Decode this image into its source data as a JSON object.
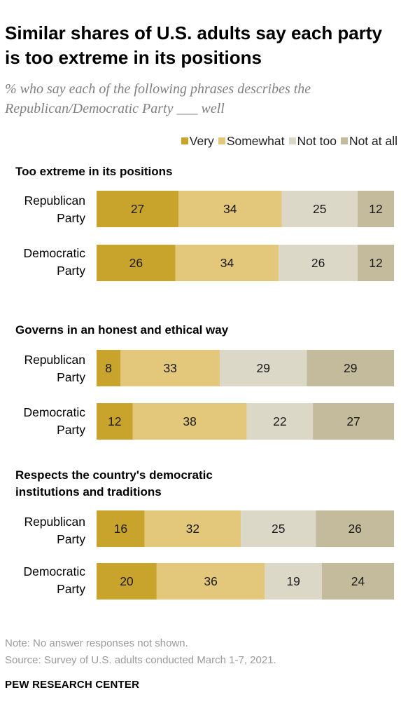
{
  "title": "Similar shares of U.S. adults say each party is too extreme in its positions",
  "subtitle": "% who say each of the following phrases describes the Republican/Democratic Party ___ well",
  "legend": [
    {
      "label": "Very",
      "color": "#c9a42c"
    },
    {
      "label": "Somewhat",
      "color": "#e3c77b"
    },
    {
      "label": "Not too",
      "color": "#dcd8c8"
    },
    {
      "label": "Not at all",
      "color": "#c4bb9d"
    }
  ],
  "chart_data": {
    "type": "bar",
    "orientation": "horizontal",
    "stacked": true,
    "categories": [
      "Very",
      "Somewhat",
      "Not too",
      "Not at all"
    ],
    "groups": [
      {
        "title": "Too extreme in its positions",
        "rows": [
          {
            "label_line1": "Republican",
            "label_line2": "Party",
            "values": [
              27,
              34,
              25,
              12
            ]
          },
          {
            "label_line1": "Democratic",
            "label_line2": "Party",
            "values": [
              26,
              34,
              26,
              12
            ]
          }
        ]
      },
      {
        "title": "Governs in an honest and ethical way",
        "rows": [
          {
            "label_line1": "Republican",
            "label_line2": "Party",
            "values": [
              8,
              33,
              29,
              29
            ]
          },
          {
            "label_line1": "Democratic",
            "label_line2": "Party",
            "values": [
              12,
              38,
              22,
              27
            ]
          }
        ]
      },
      {
        "title_line1": "Respects the country's democratic",
        "title_line2": "institutions and traditions",
        "rows": [
          {
            "label_line1": "Republican",
            "label_line2": "Party",
            "values": [
              16,
              32,
              25,
              26
            ]
          },
          {
            "label_line1": "Democratic",
            "label_line2": "Party",
            "values": [
              20,
              36,
              19,
              24
            ]
          }
        ]
      }
    ]
  },
  "notes": {
    "note": "Note: No answer responses not shown.",
    "source": "Source: Survey of U.S. adults conducted March 1-7, 2021."
  },
  "brand": "PEW RESEARCH CENTER"
}
